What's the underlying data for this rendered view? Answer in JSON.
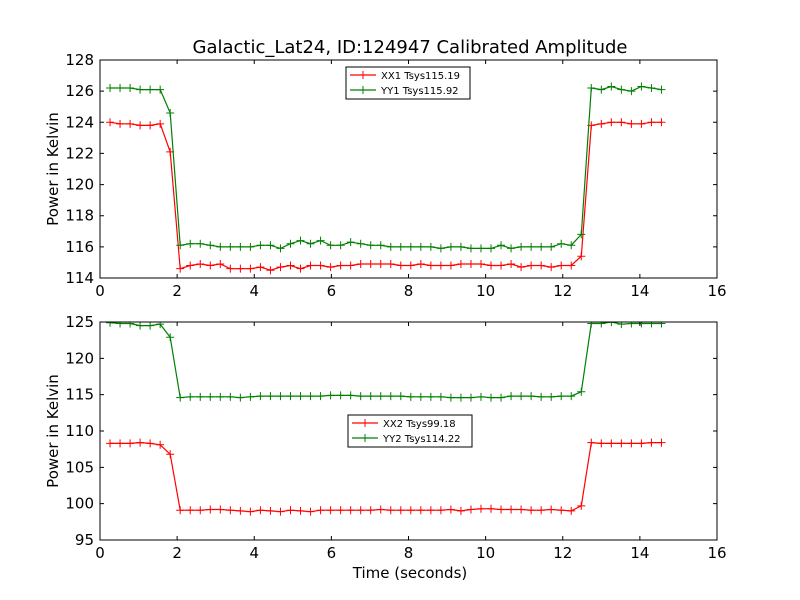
{
  "figure": {
    "title": "Galactic_Lat24, ID:124947 Calibrated Amplitude",
    "xlabel": "Time (seconds)"
  },
  "colors": {
    "xx": "#ff0000",
    "yy": "#008000"
  },
  "chart_data": [
    {
      "type": "line",
      "title": "Galactic_Lat24, ID:124947 Calibrated Amplitude",
      "xlabel": "",
      "ylabel": "Power in Kelvin",
      "xlim": [
        0,
        16
      ],
      "ylim": [
        114,
        128
      ],
      "xticks": [
        "0",
        "2",
        "4",
        "6",
        "8",
        "10",
        "12",
        "14",
        "16"
      ],
      "yticks": [
        "114",
        "116",
        "118",
        "120",
        "122",
        "124",
        "126",
        "128"
      ],
      "legend_position": "top-center",
      "x": [
        0.26,
        0.52,
        0.78,
        1.04,
        1.3,
        1.56,
        1.82,
        2.08,
        2.34,
        2.6,
        2.86,
        3.12,
        3.38,
        3.64,
        3.9,
        4.16,
        4.42,
        4.68,
        4.94,
        5.2,
        5.46,
        5.72,
        5.98,
        6.24,
        6.5,
        6.76,
        7.02,
        7.28,
        7.54,
        7.8,
        8.06,
        8.32,
        8.58,
        8.84,
        9.1,
        9.36,
        9.62,
        9.88,
        10.14,
        10.4,
        10.66,
        10.92,
        11.18,
        11.44,
        11.7,
        11.96,
        12.22,
        12.48,
        12.74,
        13.0,
        13.26,
        13.52,
        13.78,
        14.04,
        14.3,
        14.56
      ],
      "series": [
        {
          "name": "XX1 Tsys115.19",
          "color": "#ff0000",
          "values": [
            124.0,
            123.9,
            123.9,
            123.8,
            123.8,
            123.9,
            122.1,
            114.6,
            114.8,
            114.9,
            114.8,
            114.9,
            114.6,
            114.6,
            114.6,
            114.7,
            114.5,
            114.7,
            114.8,
            114.6,
            114.8,
            114.8,
            114.7,
            114.8,
            114.8,
            114.9,
            114.9,
            114.9,
            114.9,
            114.8,
            114.8,
            114.9,
            114.8,
            114.8,
            114.8,
            114.9,
            114.9,
            114.9,
            114.8,
            114.8,
            114.9,
            114.7,
            114.8,
            114.8,
            114.7,
            114.8,
            114.8,
            115.4,
            123.8,
            123.9,
            124.0,
            124.0,
            123.9,
            123.9,
            124.0,
            124.0
          ]
        },
        {
          "name": "YY1 Tsys115.92",
          "color": "#008000",
          "values": [
            126.2,
            126.2,
            126.2,
            126.1,
            126.1,
            126.1,
            124.6,
            116.1,
            116.2,
            116.2,
            116.1,
            116.0,
            116.0,
            116.0,
            116.0,
            116.1,
            116.1,
            115.9,
            116.2,
            116.4,
            116.2,
            116.4,
            116.1,
            116.1,
            116.3,
            116.2,
            116.1,
            116.1,
            116.0,
            116.0,
            116.0,
            116.0,
            116.0,
            115.9,
            116.0,
            116.0,
            115.9,
            115.9,
            115.9,
            116.1,
            115.9,
            116.0,
            116.0,
            116.0,
            116.0,
            116.2,
            116.1,
            116.8,
            126.2,
            126.1,
            126.3,
            126.1,
            126.0,
            126.3,
            126.2,
            126.1
          ]
        }
      ]
    },
    {
      "type": "line",
      "title": "",
      "xlabel": "Time (seconds)",
      "ylabel": "Power in Kelvin",
      "xlim": [
        0,
        16
      ],
      "ylim": [
        95,
        125
      ],
      "xticks": [
        "0",
        "2",
        "4",
        "6",
        "8",
        "10",
        "12",
        "14",
        "16"
      ],
      "yticks": [
        "95",
        "100",
        "105",
        "110",
        "115",
        "120",
        "125"
      ],
      "legend_position": "center",
      "x": [
        0.26,
        0.52,
        0.78,
        1.04,
        1.3,
        1.56,
        1.82,
        2.08,
        2.34,
        2.6,
        2.86,
        3.12,
        3.38,
        3.64,
        3.9,
        4.16,
        4.42,
        4.68,
        4.94,
        5.2,
        5.46,
        5.72,
        5.98,
        6.24,
        6.5,
        6.76,
        7.02,
        7.28,
        7.54,
        7.8,
        8.06,
        8.32,
        8.58,
        8.84,
        9.1,
        9.36,
        9.62,
        9.88,
        10.14,
        10.4,
        10.66,
        10.92,
        11.18,
        11.44,
        11.7,
        11.96,
        12.22,
        12.48,
        12.74,
        13.0,
        13.26,
        13.52,
        13.78,
        14.04,
        14.3,
        14.56
      ],
      "series": [
        {
          "name": "XX2 Tsys99.18",
          "color": "#ff0000",
          "values": [
            108.3,
            108.3,
            108.3,
            108.4,
            108.3,
            108.1,
            106.8,
            99.1,
            99.1,
            99.1,
            99.2,
            99.2,
            99.1,
            99.0,
            98.9,
            99.1,
            99.0,
            98.9,
            99.1,
            99.0,
            98.9,
            99.1,
            99.1,
            99.1,
            99.1,
            99.1,
            99.1,
            99.2,
            99.1,
            99.1,
            99.1,
            99.1,
            99.1,
            99.1,
            99.2,
            99.0,
            99.2,
            99.3,
            99.3,
            99.2,
            99.2,
            99.2,
            99.1,
            99.1,
            99.2,
            99.1,
            99.0,
            99.7,
            108.4,
            108.3,
            108.3,
            108.3,
            108.3,
            108.3,
            108.4,
            108.4
          ]
        },
        {
          "name": "YY2 Tsys114.22",
          "color": "#008000",
          "values": [
            124.9,
            124.8,
            124.8,
            124.5,
            124.5,
            124.7,
            122.9,
            114.6,
            114.7,
            114.7,
            114.7,
            114.7,
            114.7,
            114.6,
            114.7,
            114.8,
            114.8,
            114.8,
            114.8,
            114.8,
            114.8,
            114.8,
            114.9,
            114.9,
            114.9,
            114.8,
            114.8,
            114.8,
            114.8,
            114.8,
            114.7,
            114.7,
            114.7,
            114.7,
            114.6,
            114.6,
            114.6,
            114.7,
            114.6,
            114.6,
            114.8,
            114.8,
            114.8,
            114.7,
            114.7,
            114.8,
            114.8,
            115.4,
            124.8,
            124.8,
            125.0,
            124.7,
            124.8,
            124.8,
            124.8,
            124.8
          ]
        }
      ]
    }
  ]
}
